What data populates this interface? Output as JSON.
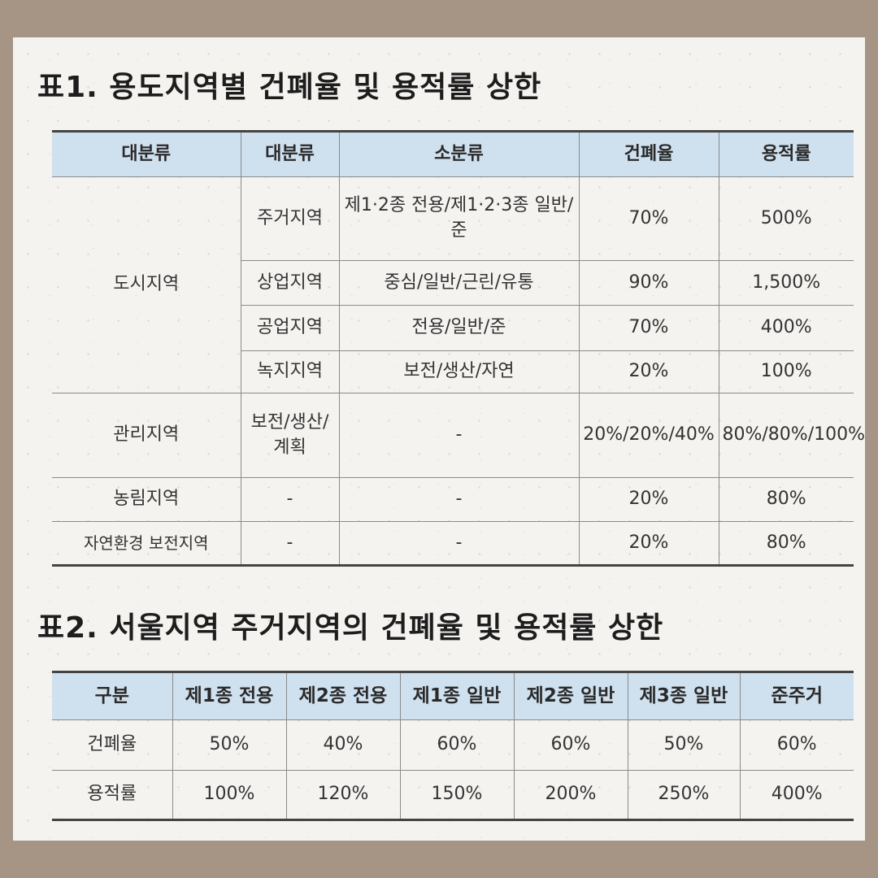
{
  "table1": {
    "title": "표1. 용도지역별 건폐율 및 용적률 상한",
    "headers": [
      "대분류",
      "대분류",
      "소분류",
      "건폐율",
      "용적률"
    ],
    "urban": {
      "label": "도시지역",
      "rows": [
        {
          "sub": "주거지역",
          "detail": "제1·2종 전용/제1·2·3종 일반/준",
          "bcr": "70%",
          "far": "500%"
        },
        {
          "sub": "상업지역",
          "detail": "중심/일반/근린/유통",
          "bcr": "90%",
          "far": "1,500%"
        },
        {
          "sub": "공업지역",
          "detail": "전용/일반/준",
          "bcr": "70%",
          "far": "400%"
        },
        {
          "sub": "녹지지역",
          "detail": "보전/생산/자연",
          "bcr": "20%",
          "far": "100%"
        }
      ]
    },
    "management": {
      "label": "관리지역",
      "sub": "보전/생산/계획",
      "detail": "-",
      "bcr": "20%/20%/40%",
      "far": "80%/80%/100%"
    },
    "agriculture": {
      "label": "농림지역",
      "sub": "-",
      "detail": "-",
      "bcr": "20%",
      "far": "80%"
    },
    "nature": {
      "label": "자연환경 보전지역",
      "sub": "-",
      "detail": "-",
      "bcr": "20%",
      "far": "80%"
    }
  },
  "table2": {
    "title": "표2. 서울지역 주거지역의 건폐율 및 용적률 상한",
    "headers": [
      "구분",
      "제1종 전용",
      "제2종 전용",
      "제1종 일반",
      "제2종 일반",
      "제3종 일반",
      "준주거"
    ],
    "rows": [
      {
        "label": "건폐율",
        "values": [
          "50%",
          "40%",
          "60%",
          "60%",
          "50%",
          "60%"
        ]
      },
      {
        "label": "용적률",
        "values": [
          "100%",
          "120%",
          "150%",
          "200%",
          "250%",
          "400%"
        ]
      }
    ]
  }
}
